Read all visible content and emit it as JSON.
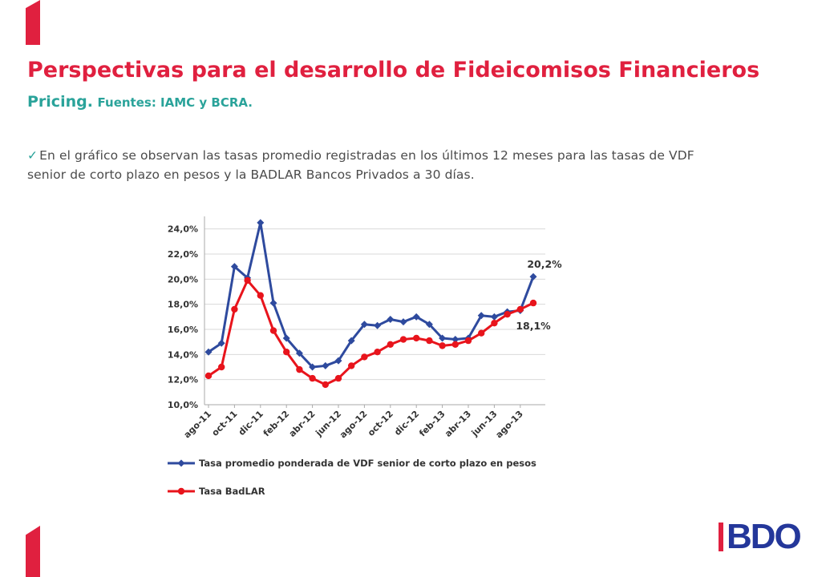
{
  "header": {
    "title": "Perspectivas para el desarrollo de Fideicomisos Financieros",
    "subtitle_main": "Pricing.",
    "subtitle_sources": "Fuentes: IAMC y BCRA."
  },
  "bullet": {
    "check": "✓",
    "text": "En el gráfico se observan las tasas promedio registradas en los últimos 12 meses para las tasas de VDF senior de corto plazo en pesos y la BADLAR Bancos Privados a 30 días."
  },
  "logo": {
    "text": "BDO"
  },
  "colors": {
    "accent": "#e0203f",
    "teal": "#2aa39a",
    "series_vdf": "#2e4a9e",
    "series_badlar": "#e8141c",
    "logo_blue": "#24379a"
  },
  "chart_data": {
    "type": "line",
    "x": [
      "ago-11",
      "sep-11",
      "oct-11",
      "nov-11",
      "dic-11",
      "ene-12",
      "feb-12",
      "mar-12",
      "abr-12",
      "may-12",
      "jun-12",
      "jul-12",
      "ago-12",
      "sep-12",
      "oct-12",
      "nov-12",
      "dic-12",
      "ene-13",
      "feb-13",
      "mar-13",
      "abr-13",
      "may-13",
      "jun-13",
      "jul-13",
      "ago-13",
      "sep-13"
    ],
    "tick_labels": [
      "ago-11",
      "oct-11",
      "dic-11",
      "feb-12",
      "abr-12",
      "jun-12",
      "ago-12",
      "oct-12",
      "dic-12",
      "feb-13",
      "abr-13",
      "jun-13",
      "ago-13"
    ],
    "y_ticks": [
      "10,0%",
      "12,0%",
      "14,0%",
      "16,0%",
      "18,0%",
      "20,0%",
      "22,0%",
      "24,0%"
    ],
    "ylim": [
      10,
      25
    ],
    "grid": true,
    "legend_position": "bottom",
    "series": [
      {
        "name": "Tasa promedio ponderada de VDF senior de corto plazo en pesos",
        "values": [
          14.2,
          14.9,
          21.0,
          20.1,
          24.5,
          18.1,
          15.3,
          14.1,
          13.0,
          13.1,
          13.5,
          15.1,
          16.4,
          16.3,
          16.8,
          16.6,
          17.0,
          16.4,
          15.3,
          15.2,
          15.3,
          17.1,
          17.0,
          17.4,
          17.5,
          20.2
        ],
        "end_label": "20,2%"
      },
      {
        "name": "Tasa BadLAR",
        "values": [
          12.3,
          13.0,
          17.6,
          19.9,
          18.7,
          15.9,
          14.2,
          12.8,
          12.1,
          11.6,
          12.1,
          13.1,
          13.8,
          14.2,
          14.8,
          15.2,
          15.3,
          15.1,
          14.7,
          14.8,
          15.1,
          15.7,
          16.5,
          17.2,
          17.6,
          18.1
        ],
        "end_label": "18,1%"
      }
    ]
  }
}
